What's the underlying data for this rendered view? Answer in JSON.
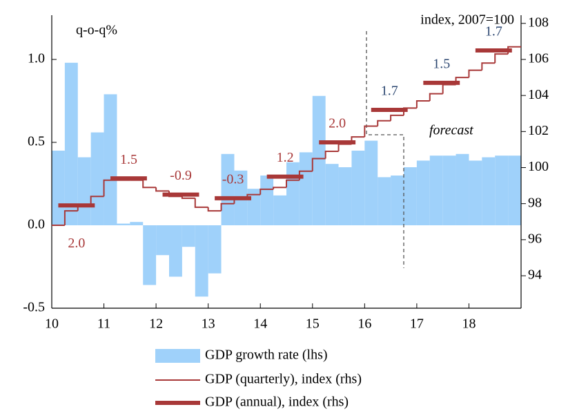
{
  "chart_data": {
    "type": "bar",
    "y_label": "q-o-q%",
    "y2_label": "index, 2007=100",
    "annotation": "forecast",
    "xlim": [
      10,
      19
    ],
    "xticks": [
      10,
      11,
      12,
      13,
      14,
      15,
      16,
      17,
      18
    ],
    "ylim": [
      -0.5,
      1.25
    ],
    "yticks": [
      -0.5,
      {
        "value": 0,
        "label": "0.0"
      },
      0.5,
      {
        "value": 1,
        "label": "1.0"
      }
    ],
    "y2lim": [
      92.2,
      108.3
    ],
    "y2ticks": [
      94,
      96,
      98,
      100,
      102,
      104,
      106,
      108
    ],
    "series": [
      {
        "name": "GDP growth rate (lhs)",
        "type": "bar",
        "color": "#9fd1fa",
        "x": [
          10,
          10.25,
          10.5,
          10.75,
          11,
          11.25,
          11.5,
          11.75,
          12,
          12.25,
          12.5,
          12.75,
          13,
          13.25,
          13.5,
          13.75,
          14,
          14.25,
          14.5,
          14.75,
          15,
          15.25,
          15.5,
          15.75,
          16,
          16.25,
          16.5,
          16.75,
          17,
          17.25,
          17.5,
          17.75,
          18,
          18.25,
          18.5,
          18.75
        ],
        "values": [
          0.45,
          0.98,
          0.41,
          0.56,
          0.79,
          0.01,
          0.02,
          -0.36,
          -0.18,
          -0.31,
          -0.13,
          -0.43,
          -0.29,
          0.43,
          0.33,
          0.22,
          0.3,
          0.18,
          0.38,
          0.44,
          0.78,
          0.37,
          0.35,
          0.45,
          0.51,
          0.29,
          0.3,
          0.35,
          0.39,
          0.42,
          0.42,
          0.43,
          0.39,
          0.41,
          0.42,
          0.42
        ]
      },
      {
        "name": "GDP (quarterly), index (rhs)",
        "type": "step",
        "axis": "y2",
        "color": "#a83838",
        "x": [
          10,
          10.25,
          10.5,
          10.75,
          11,
          11.25,
          11.5,
          11.75,
          12,
          12.25,
          12.5,
          12.75,
          13,
          13.25,
          13.5,
          13.75,
          14,
          14.25,
          14.5,
          14.75,
          15,
          15.25,
          15.5,
          15.75,
          16,
          16.25,
          16.5,
          16.75,
          17,
          17.25,
          17.5,
          17.75,
          18,
          18.25,
          18.5,
          18.75
        ],
        "values": [
          96.8,
          97.6,
          97.9,
          98.4,
          99.3,
          99.3,
          99.3,
          98.9,
          98.7,
          98.4,
          98.3,
          97.8,
          97.6,
          98.0,
          98.3,
          98.5,
          98.8,
          98.9,
          99.3,
          99.8,
          100.5,
          100.9,
          101.3,
          101.7,
          102.3,
          102.6,
          102.9,
          103.3,
          103.7,
          104.1,
          104.6,
          105.0,
          105.4,
          105.8,
          106.3,
          106.7
        ]
      },
      {
        "name": "GDP (annual), index (rhs)",
        "type": "annual",
        "axis": "y2",
        "color": "#a83838",
        "x": [
          10,
          11,
          12,
          13,
          14,
          15,
          16,
          17,
          18
        ],
        "values": [
          97.9,
          99.4,
          98.5,
          98.3,
          99.5,
          101.4,
          103.2,
          104.7,
          106.5
        ],
        "growth_labels": [
          "2.0",
          "1.5",
          "-0.9",
          "-0.3",
          "1.2",
          "2.0",
          "1.7",
          "1.5",
          "1.7"
        ],
        "growth_label_colors": [
          "#a83838",
          "#a83838",
          "#a83838",
          "#a83838",
          "#a83838",
          "#a83838",
          "#2b4670",
          "#2b4670",
          "#2b4670"
        ]
      }
    ]
  }
}
